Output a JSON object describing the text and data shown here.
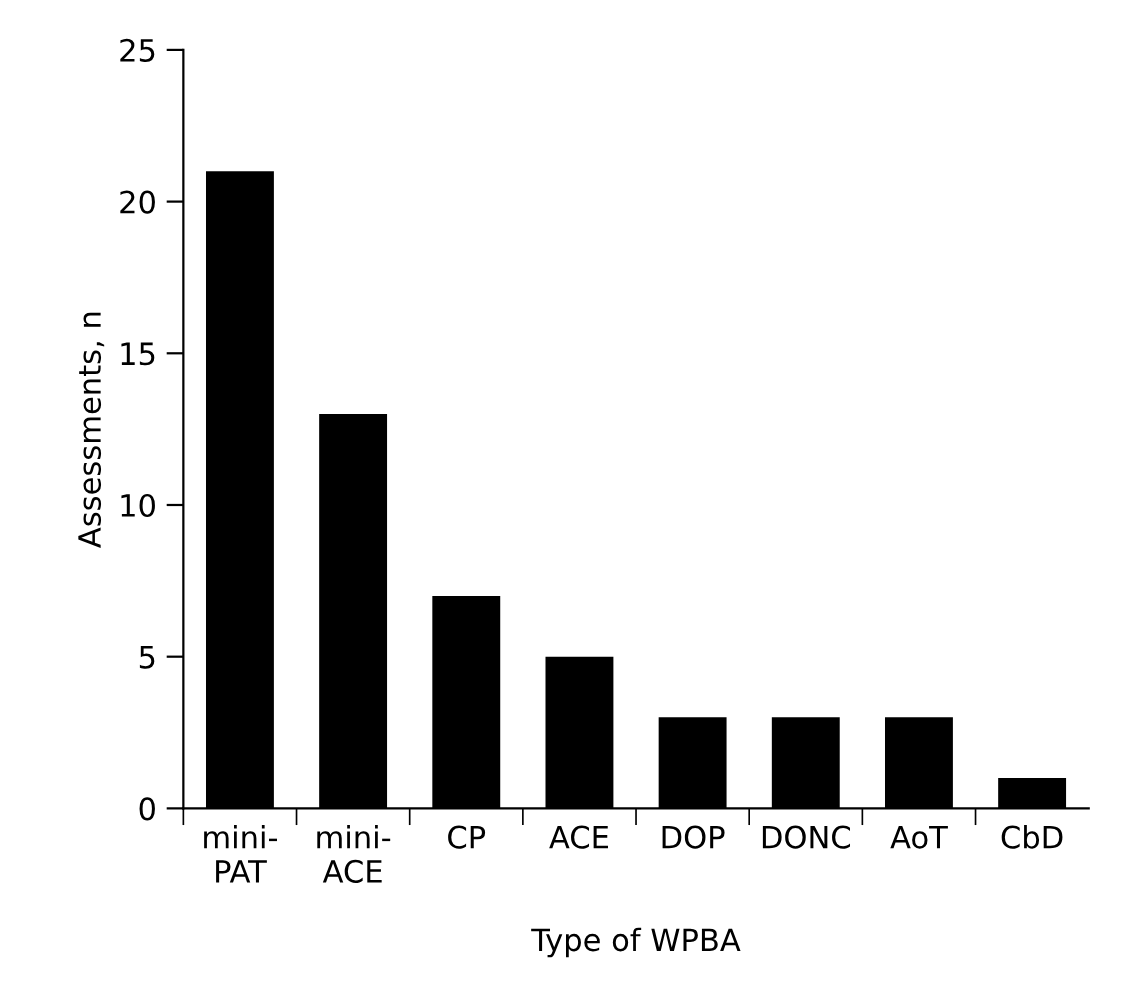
{
  "chart_data": {
    "type": "bar",
    "xlabel": "Type of WPBA",
    "ylabel": "Assessments, n",
    "categories": [
      "mini-\nPAT",
      "mini-\nACE",
      "CP",
      "ACE",
      "DOP",
      "DONC",
      "AoT",
      "CbD"
    ],
    "values": [
      21,
      13,
      7,
      5,
      3,
      3,
      3,
      1
    ],
    "color": "#000000",
    "ylim": [
      0,
      25
    ],
    "yticks": [
      0,
      5,
      10,
      15,
      20,
      25
    ],
    "grid": false
  }
}
